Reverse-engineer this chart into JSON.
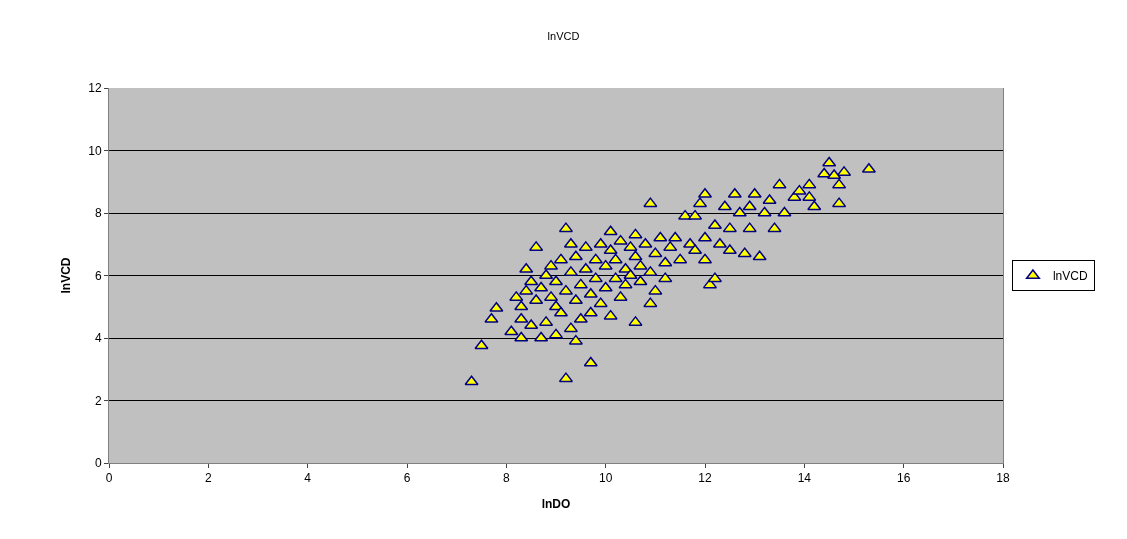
{
  "chart_data": {
    "type": "scatter",
    "title": "lnVCD",
    "xlabel": "lnDO",
    "ylabel": "lnVCD",
    "xlim": [
      0,
      18
    ],
    "xticks": [
      0,
      2,
      4,
      6,
      8,
      10,
      12,
      14,
      16,
      18
    ],
    "ylim": [
      0,
      12
    ],
    "yticks": [
      0,
      2,
      4,
      6,
      8,
      10,
      12
    ],
    "grid": "y",
    "legend": "right",
    "marker": "triangle",
    "series": [
      {
        "name": "lnVCD",
        "color": "#ffff00",
        "x": [
          7.3,
          7.5,
          7.7,
          7.8,
          9.2,
          9.7,
          9.4,
          10.6,
          10.9,
          12.1,
          12.2,
          14.5,
          15.3,
          14.4,
          14.8,
          14.6,
          14.7,
          14.1,
          14.1,
          14.2,
          14.7,
          8.1,
          8.2,
          8.3,
          8.3,
          8.3,
          8.4,
          8.4,
          8.5,
          8.5,
          8.6,
          8.6,
          8.7,
          8.7,
          8.8,
          8.8,
          8.9,
          8.9,
          9.0,
          9.0,
          9.0,
          9.1,
          9.1,
          9.2,
          9.2,
          9.3,
          9.3,
          9.3,
          9.4,
          9.4,
          9.5,
          9.5,
          9.6,
          9.6,
          9.7,
          9.7,
          9.8,
          9.8,
          9.9,
          9.9,
          10.0,
          10.0,
          10.1,
          10.1,
          10.1,
          10.2,
          10.2,
          10.3,
          10.3,
          10.4,
          10.4,
          10.5,
          10.5,
          10.6,
          10.6,
          10.7,
          10.7,
          10.8,
          10.9,
          10.9,
          11.0,
          11.0,
          11.1,
          11.2,
          11.2,
          11.3,
          11.4,
          11.5,
          11.6,
          11.7,
          11.8,
          11.8,
          11.9,
          12.0,
          12.0,
          12.0,
          12.2,
          12.3,
          12.4,
          12.5,
          12.5,
          12.6,
          12.7,
          12.8,
          12.9,
          12.9,
          13.0,
          13.1,
          13.2,
          13.3,
          13.4,
          13.5,
          13.6,
          13.8,
          13.9
        ],
        "values": [
          2.6,
          3.75,
          4.6,
          4.95,
          2.7,
          3.2,
          3.9,
          4.5,
          5.1,
          5.7,
          5.9,
          9.6,
          9.4,
          9.25,
          9.3,
          9.2,
          8.9,
          8.9,
          8.5,
          8.2,
          8.3,
          4.2,
          5.3,
          4.0,
          4.6,
          5.0,
          5.5,
          6.2,
          5.8,
          4.4,
          6.9,
          5.2,
          4.0,
          5.6,
          4.5,
          6.0,
          5.3,
          6.3,
          4.1,
          5.0,
          5.8,
          6.5,
          4.8,
          5.5,
          7.5,
          4.3,
          6.1,
          7.0,
          5.2,
          6.6,
          5.7,
          4.6,
          6.9,
          6.2,
          5.4,
          4.8,
          6.5,
          5.9,
          7.0,
          5.1,
          6.3,
          5.6,
          4.7,
          6.8,
          7.4,
          5.9,
          6.5,
          5.3,
          7.1,
          6.2,
          5.7,
          6.9,
          6.0,
          7.3,
          6.6,
          5.8,
          6.3,
          7.0,
          6.1,
          8.3,
          6.7,
          5.5,
          7.2,
          6.4,
          5.9,
          6.9,
          7.2,
          6.5,
          7.9,
          7.0,
          6.8,
          7.9,
          8.3,
          7.2,
          8.6,
          6.5,
          7.6,
          7.0,
          8.2,
          7.5,
          6.8,
          8.6,
          8.0,
          6.7,
          7.5,
          8.2,
          8.6,
          6.6,
          8.0,
          8.4,
          7.5,
          8.9,
          8.0,
          8.5,
          8.7
        ]
      }
    ]
  }
}
